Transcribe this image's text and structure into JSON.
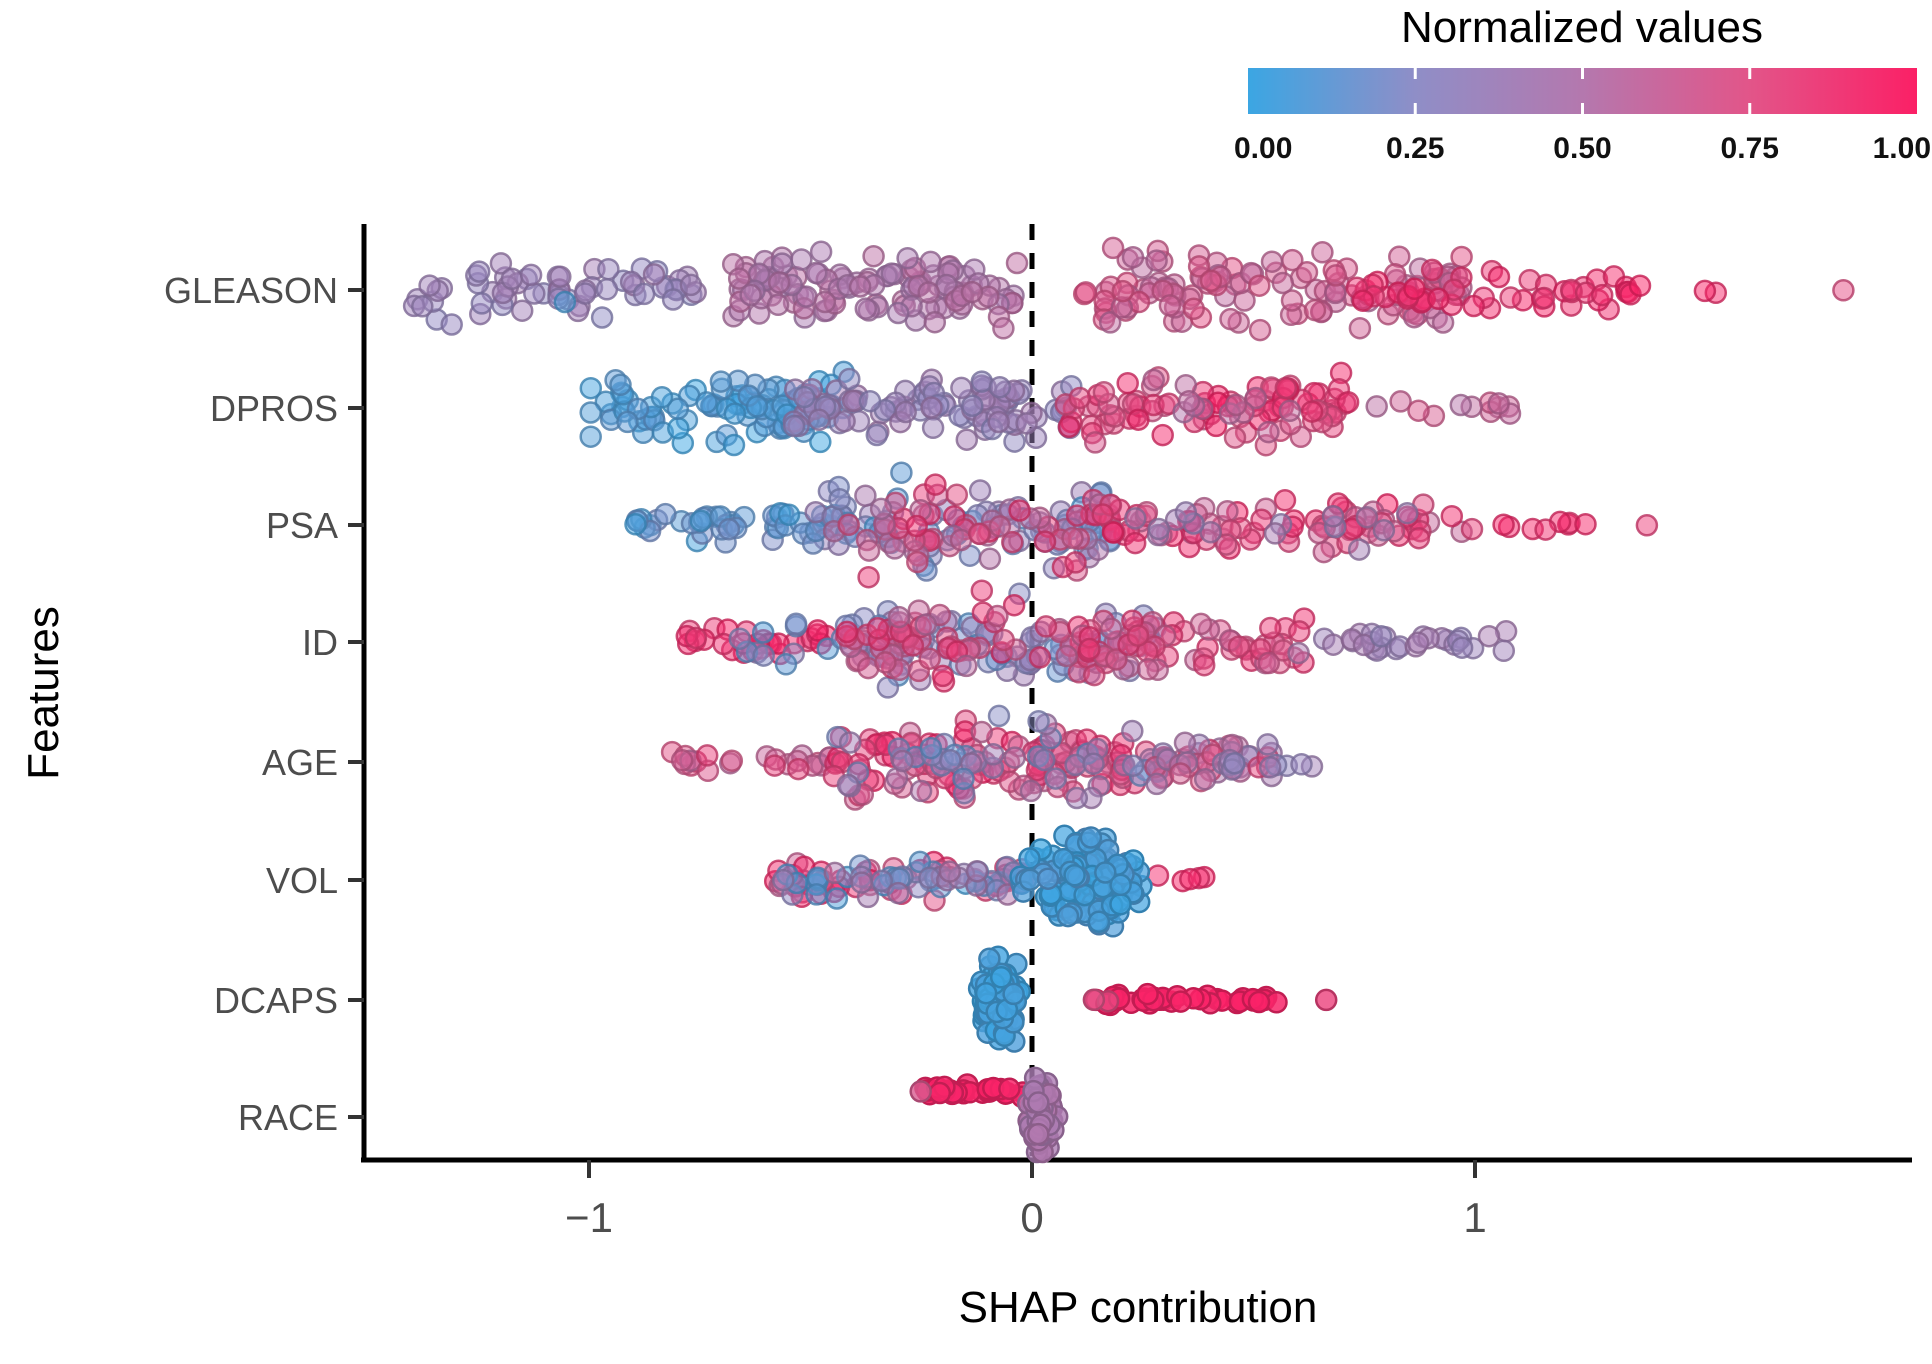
{
  "chart_data": {
    "type": "scatter",
    "subtype": "beeswarm",
    "title": "",
    "xlabel": "SHAP contribution",
    "ylabel": "Features",
    "xlim": [
      -1.52,
      2.0
    ],
    "x_ticks": [
      {
        "value": -1,
        "label": "−1"
      },
      {
        "value": 0,
        "label": "0"
      },
      {
        "value": 1,
        "label": "1"
      }
    ],
    "zero_line": 0,
    "grid": false,
    "colorbar": {
      "title": "Normalized values",
      "range": [
        0,
        1
      ],
      "ticks": [
        0,
        0.25,
        0.5,
        0.75,
        1
      ],
      "tick_labels": [
        "0.00",
        "0.25",
        "0.50",
        "0.75",
        "1.00"
      ],
      "stops": [
        [
          0.0,
          "#3BA6E3"
        ],
        [
          0.25,
          "#8F8EC7"
        ],
        [
          0.5,
          "#B478AE"
        ],
        [
          0.75,
          "#E25589"
        ],
        [
          1.0,
          "#FB2066"
        ]
      ]
    },
    "features": [
      {
        "name": "GLEASON",
        "clusters": [
          {
            "x": [
              -1.4,
              -0.75
            ],
            "n": 62,
            "v": [
              0.26,
              0.42
            ],
            "ys": 40
          },
          {
            "x": [
              -1.06,
              -1.0
            ],
            "n": 1,
            "v": [
              0.05,
              0.1
            ],
            "ys": 26
          },
          {
            "x": [
              -0.68,
              -0.03
            ],
            "n": 120,
            "v": [
              0.44,
              0.58
            ],
            "ys": 52
          },
          {
            "x": [
              0.1,
              0.98
            ],
            "n": 125,
            "v": [
              0.55,
              0.78
            ],
            "ys": 50
          },
          {
            "x": [
              0.72,
              1.32
            ],
            "n": 42,
            "v": [
              0.85,
              1.0
            ],
            "ys": 30
          },
          {
            "x": [
              1.32,
              1.62
            ],
            "n": 7,
            "v": [
              0.95,
              1.0
            ],
            "ys": 10
          },
          {
            "x": [
              1.82,
              1.84
            ],
            "n": 1,
            "v": [
              0.78,
              0.8
            ],
            "ys": 2
          }
        ]
      },
      {
        "name": "DPROS",
        "clusters": [
          {
            "x": [
              -1.0,
              -0.42
            ],
            "n": 95,
            "v": [
              0.0,
              0.12
            ],
            "ys": 46
          },
          {
            "x": [
              -0.54,
              0.1
            ],
            "n": 100,
            "v": [
              0.26,
              0.44
            ],
            "ys": 52
          },
          {
            "x": [
              0.06,
              0.72
            ],
            "n": 85,
            "v": [
              0.7,
              1.0
            ],
            "ys": 48
          },
          {
            "x": [
              0.25,
              0.6
            ],
            "n": 12,
            "v": [
              0.5,
              0.62
            ],
            "ys": 40
          },
          {
            "x": [
              0.7,
              1.08
            ],
            "n": 12,
            "v": [
              0.52,
              0.72
            ],
            "ys": 16
          }
        ]
      },
      {
        "name": "PSA",
        "clusters": [
          {
            "x": [
              -0.9,
              -0.45
            ],
            "n": 42,
            "v": [
              0.02,
              0.22
            ],
            "ys": 26
          },
          {
            "x": [
              -0.5,
              0.18
            ],
            "n": 85,
            "v": [
              0.05,
              0.38
            ],
            "ys": 55
          },
          {
            "x": [
              -0.45,
              0.18
            ],
            "n": 70,
            "v": [
              0.45,
              0.95
            ],
            "ys": 55
          },
          {
            "x": [
              0.15,
              1.0
            ],
            "n": 80,
            "v": [
              0.6,
              1.0
            ],
            "ys": 32
          },
          {
            "x": [
              0.2,
              0.9
            ],
            "n": 15,
            "v": [
              0.3,
              0.45
            ],
            "ys": 30
          },
          {
            "x": [
              1.0,
              1.25
            ],
            "n": 8,
            "v": [
              0.85,
              1.0
            ],
            "ys": 8
          },
          {
            "x": [
              1.38,
              1.4
            ],
            "n": 1,
            "v": [
              0.85,
              0.9
            ],
            "ys": 2
          }
        ]
      },
      {
        "name": "ID",
        "clusters": [
          {
            "x": [
              -0.8,
              -0.45
            ],
            "n": 28,
            "v": [
              0.85,
              1.0
            ],
            "ys": 22
          },
          {
            "x": [
              -0.66,
              -0.3
            ],
            "n": 16,
            "v": [
              0.05,
              0.3
            ],
            "ys": 28
          },
          {
            "x": [
              -0.42,
              0.28
            ],
            "n": 80,
            "v": [
              0.1,
              0.42
            ],
            "ys": 55
          },
          {
            "x": [
              -0.42,
              0.28
            ],
            "n": 80,
            "v": [
              0.55,
              0.95
            ],
            "ys": 55
          },
          {
            "x": [
              0.1,
              0.62
            ],
            "n": 55,
            "v": [
              0.6,
              0.92
            ],
            "ys": 38
          },
          {
            "x": [
              0.5,
              0.8
            ],
            "n": 8,
            "v": [
              0.35,
              0.5
            ],
            "ys": 20
          },
          {
            "x": [
              0.72,
              1.08
            ],
            "n": 22,
            "v": [
              0.3,
              0.45
            ],
            "ys": 18
          }
        ]
      },
      {
        "name": "AGE",
        "clusters": [
          {
            "x": [
              -0.82,
              -0.42
            ],
            "n": 24,
            "v": [
              0.55,
              0.85
            ],
            "ys": 16
          },
          {
            "x": [
              -0.45,
              0.3
            ],
            "n": 120,
            "v": [
              0.6,
              1.0
            ],
            "ys": 52
          },
          {
            "x": [
              -0.45,
              0.3
            ],
            "n": 50,
            "v": [
              0.12,
              0.5
            ],
            "ys": 52
          },
          {
            "x": [
              0.25,
              0.55
            ],
            "n": 40,
            "v": [
              0.3,
              0.85
            ],
            "ys": 28
          },
          {
            "x": [
              0.42,
              0.64
            ],
            "n": 10,
            "v": [
              0.25,
              0.4
            ],
            "ys": 12
          }
        ]
      },
      {
        "name": "VOL",
        "clusters": [
          {
            "x": [
              -0.58,
              0.0
            ],
            "n": 50,
            "v": [
              0.6,
              1.0
            ],
            "ys": 24
          },
          {
            "x": [
              -0.58,
              0.0
            ],
            "n": 32,
            "v": [
              0.02,
              0.28
            ],
            "ys": 24
          },
          {
            "x": [
              -0.45,
              -0.05
            ],
            "n": 14,
            "v": [
              0.3,
              0.5
            ],
            "ys": 22
          },
          {
            "x": [
              -0.57,
              -0.55
            ],
            "n": 1,
            "v": [
              0.3,
              0.35
            ],
            "ys": 4
          },
          {
            "x": [
              0.28,
              0.4
            ],
            "n": 5,
            "v": [
              0.85,
              1.0
            ],
            "ys": 8
          },
          {
            "x": [
              -0.05,
              0.3
            ],
            "n": 150,
            "v": [
              0.0,
              0.1
            ],
            "ys": 56,
            "dist": "blob",
            "op": 0.7
          }
        ]
      },
      {
        "name": "DCAPS",
        "clusters": [
          {
            "x": [
              -0.13,
              -0.01
            ],
            "n": 130,
            "v": [
              0.0,
              0.06
            ],
            "ys": 52,
            "dist": "blob",
            "op": 0.8
          },
          {
            "x": [
              0.13,
              0.56
            ],
            "n": 42,
            "v": [
              0.97,
              1.0
            ],
            "ys": 7,
            "op": 0.85
          },
          {
            "x": [
              0.13,
              0.18
            ],
            "n": 2,
            "v": [
              0.72,
              0.8
            ],
            "ys": 6,
            "op": 0.7
          },
          {
            "x": [
              0.66,
              0.7
            ],
            "n": 1,
            "v": [
              0.82,
              0.86
            ],
            "ys": 2,
            "op": 0.8
          }
        ]
      },
      {
        "name": "RACE",
        "clusters": [
          {
            "x": [
              -0.25,
              -0.02
            ],
            "n": 32,
            "v": [
              0.96,
              1.0
            ],
            "ys": 7,
            "dy": -26,
            "op": 0.85
          },
          {
            "x": [
              -0.26,
              -0.24
            ],
            "n": 1,
            "v": [
              0.68,
              0.72
            ],
            "ys": 3,
            "dy": -26,
            "op": 0.8
          },
          {
            "x": [
              -0.02,
              0.06
            ],
            "n": 90,
            "v": [
              0.44,
              0.5
            ],
            "ys": 50,
            "dist": "blob",
            "op": 0.8
          }
        ]
      }
    ]
  }
}
